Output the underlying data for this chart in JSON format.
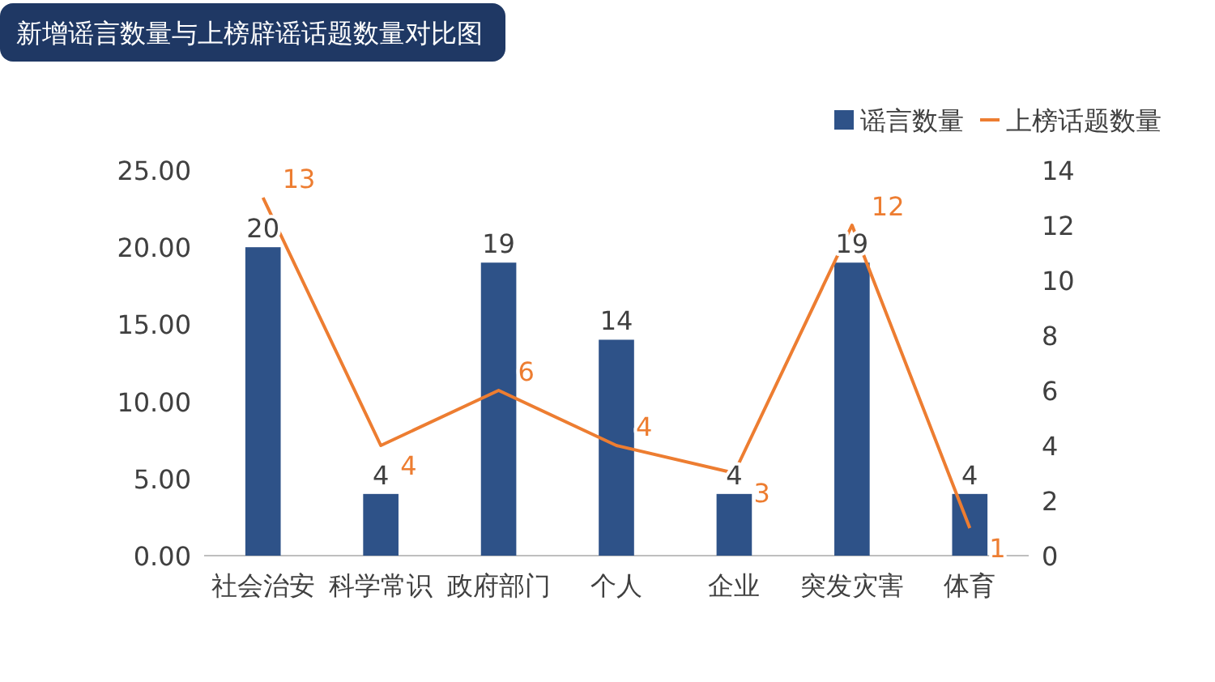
{
  "chart_data": {
    "type": "bar",
    "title": "新增谣言数量与上榜辟谣话题数量对比图",
    "categories": [
      "社会治安",
      "科学常识",
      "政府部门",
      "个人",
      "企业",
      "突发灾害",
      "体育"
    ],
    "series": [
      {
        "name": "谣言数量",
        "color": "#2e5288",
        "values": [
          20,
          4,
          19,
          14,
          4,
          19,
          4
        ]
      },
      {
        "name": "上榜话题数量",
        "type": "line",
        "axis": "y2",
        "color": "#ed7d31",
        "values": [
          13,
          4,
          6,
          4,
          3,
          12,
          1
        ]
      }
    ],
    "ylim": [
      0,
      25
    ],
    "yticks": [
      {
        "value": 0,
        "label": "0.00"
      },
      {
        "value": 5,
        "label": "5.00"
      },
      {
        "value": 10,
        "label": "10.00"
      },
      {
        "value": 15,
        "label": "15.00"
      },
      {
        "value": 20,
        "label": "20.00"
      },
      {
        "value": 25,
        "label": "25.00"
      }
    ],
    "y2lim": [
      0,
      14
    ],
    "y2ticks": [
      0,
      2,
      4,
      6,
      8,
      10,
      12,
      14
    ],
    "legend": "top right",
    "data_labels": true
  }
}
